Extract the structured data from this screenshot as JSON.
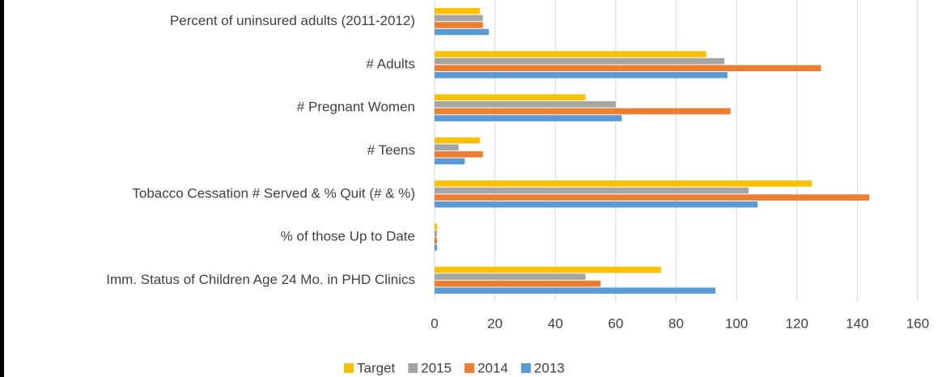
{
  "chart_data": {
    "type": "hbar",
    "categories": [
      "Percent of uninsured adults (2011-2012)",
      "# Adults",
      "# Pregnant Women",
      "# Teens",
      "Tobacco Cessation # Served & % Quit (# & %)",
      "% of those Up to Date",
      "Imm. Status of Children Age 24 Mo. in PHD Clinics"
    ],
    "series": [
      {
        "name": "Target",
        "color": "#ffc000",
        "values": [
          15,
          90,
          50,
          15,
          125,
          0.9,
          75
        ]
      },
      {
        "name": "2015",
        "color": "#a5a5a5",
        "values": [
          16,
          96,
          60,
          8,
          104,
          0.8,
          50
        ]
      },
      {
        "name": "2014",
        "color": "#ed7d31",
        "values": [
          16,
          128,
          98,
          16,
          144,
          0.8,
          55
        ]
      },
      {
        "name": "2013",
        "color": "#5b9bd5",
        "values": [
          18,
          97,
          62,
          10,
          107,
          0.8,
          93
        ]
      }
    ],
    "xlim": [
      0,
      160
    ],
    "xticks": [
      0,
      20,
      40,
      60,
      80,
      100,
      120,
      140,
      160
    ],
    "grid": true,
    "legend": "bottom"
  }
}
